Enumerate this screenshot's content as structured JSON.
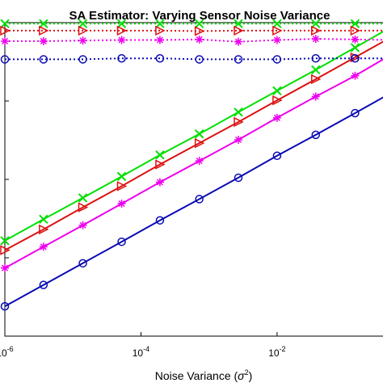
{
  "chart_data": {
    "type": "line",
    "title": "SA Estimator: Varying Sensor Noise Variance",
    "xlabel": "Noise Variance (σ²)",
    "xlabel_prefix": "Noise Variance (",
    "xlabel_symbol": "σ",
    "xlabel_power": "2",
    "xlabel_suffix": ")",
    "xscale": "log",
    "yscale": "log",
    "xlim": [
      1e-06,
      0.5
    ],
    "ylim": [
      0.0001,
      1
    ],
    "grid": false,
    "x_ticks": [
      {
        "base": "10",
        "exp": "-6",
        "label": "10^-6"
      },
      {
        "base": "10",
        "exp": "-4",
        "label": "10^-4"
      },
      {
        "base": "10",
        "exp": "-2",
        "label": "10^-2"
      }
    ],
    "x_tick_values": [
      1e-06,
      0.0001,
      0.01
    ],
    "x": [
      1e-06,
      3.7e-06,
      1.4e-05,
      5.2e-05,
      0.00019,
      0.00072,
      0.0027,
      0.01,
      0.037,
      0.14,
      0.5
    ],
    "series": [
      {
        "color": "#00e000",
        "marker": "x",
        "values_low": [
          0.00165,
          0.0031,
          0.0058,
          0.0109,
          0.0205,
          0.038,
          0.072,
          0.135,
          0.25,
          0.48,
          0.9
        ],
        "values_high": [
          0.97,
          0.97,
          0.97,
          0.97,
          0.97,
          0.97,
          0.97,
          0.97,
          0.97,
          0.97,
          0.97
        ]
      },
      {
        "color": "#dd1111",
        "marker": "triangle-right",
        "values_low": [
          0.00125,
          0.0023,
          0.0044,
          0.0082,
          0.0155,
          0.029,
          0.054,
          0.102,
          0.19,
          0.36,
          0.67
        ],
        "values_high": [
          0.79,
          0.79,
          0.79,
          0.79,
          0.79,
          0.78,
          0.79,
          0.79,
          0.79,
          0.79,
          0.79
        ]
      },
      {
        "color": "#ee00ee",
        "marker": "asterisk",
        "values_low": [
          0.00074,
          0.00138,
          0.0026,
          0.0049,
          0.0092,
          0.0172,
          0.032,
          0.061,
          0.114,
          0.21,
          0.4
        ],
        "values_high": [
          0.58,
          0.58,
          0.59,
          0.6,
          0.6,
          0.61,
          0.57,
          0.6,
          0.62,
          0.61,
          0.6
        ]
      },
      {
        "color": "#0a0ab4",
        "marker": "circle",
        "values_low": [
          0.00024,
          0.00045,
          0.00085,
          0.0016,
          0.003,
          0.0056,
          0.0105,
          0.02,
          0.037,
          0.07,
          0.13
        ],
        "values_high": [
          0.34,
          0.34,
          0.34,
          0.35,
          0.35,
          0.34,
          0.34,
          0.34,
          0.35,
          0.35,
          0.35
        ]
      }
    ]
  }
}
